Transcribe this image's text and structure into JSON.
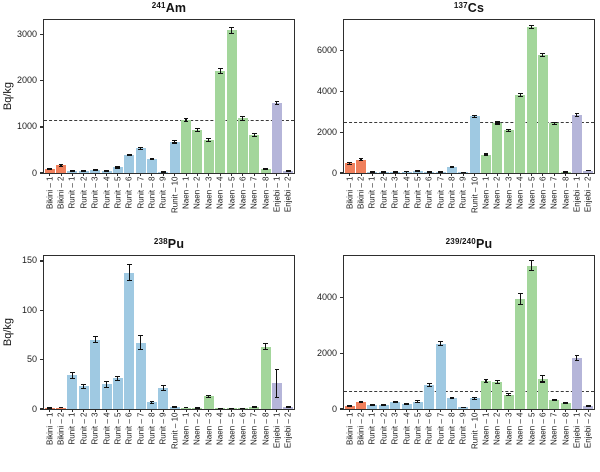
{
  "figure": {
    "axis_color": "#2e2e2e",
    "text_color": "#1c1c1c",
    "error_bar_color": "#101010",
    "dashed_line_color": "#3a3a3a",
    "background": "#ffffff",
    "site_colors": {
      "Bikini": "#f0805c",
      "Runit": "#9fc9e2",
      "Naen": "#a3d69b",
      "Enjebi": "#b5b5d9"
    }
  },
  "chart_data": [
    {
      "type": "bar",
      "title": {
        "superscript": "241",
        "element": "Am"
      },
      "ylabel": "Bq/kg",
      "categories": [
        "Bikini – 1",
        "Bikini – 2",
        "Runit – 1",
        "Runit – 2",
        "Runit – 3",
        "Runit – 4",
        "Runit – 5",
        "Runit – 6",
        "Runit – 7",
        "Runit – 8",
        "Runit – 9",
        "Runit – 10",
        "Naen – 1",
        "Naen – 2",
        "Naen – 3",
        "Naen – 4",
        "Naen – 5",
        "Naen – 6",
        "Naen – 7",
        "Naen – 8",
        "Enjebi – 1",
        "Enjebi – 2"
      ],
      "values": [
        90,
        170,
        50,
        45,
        60,
        45,
        120,
        390,
        540,
        300,
        25,
        680,
        1150,
        930,
        715,
        2220,
        3100,
        1190,
        820,
        80,
        1520,
        50
      ],
      "errors": [
        15,
        20,
        8,
        8,
        8,
        8,
        12,
        18,
        22,
        15,
        6,
        30,
        40,
        30,
        25,
        55,
        65,
        45,
        28,
        10,
        40,
        8
      ],
      "ylim": [
        0,
        3320
      ],
      "yticks": [
        0,
        1000,
        2000,
        3000
      ],
      "dashed_reference": 1130,
      "grid": false
    },
    {
      "type": "bar",
      "title": {
        "superscript": "137",
        "element": "Cs"
      },
      "ylabel": "",
      "categories": [
        "Bikini – 1",
        "Bikini – 2",
        "Runit – 1",
        "Runit – 2",
        "Runit – 3",
        "Runit – 4",
        "Runit – 5",
        "Runit – 6",
        "Runit – 7",
        "Runit – 8",
        "Runit – 9",
        "Runit – 10",
        "Naen – 1",
        "Naen – 2",
        "Naen – 3",
        "Naen – 4",
        "Naen – 5",
        "Naen – 6",
        "Naen – 7",
        "Naen – 8",
        "Enjebi – 1",
        "Enjebi – 2"
      ],
      "values": [
        470,
        650,
        40,
        40,
        50,
        70,
        90,
        50,
        50,
        300,
        30,
        2780,
        890,
        2450,
        2100,
        3830,
        7160,
        5780,
        2430,
        50,
        2840,
        120
      ],
      "errors": [
        35,
        40,
        8,
        8,
        8,
        10,
        12,
        8,
        8,
        25,
        6,
        60,
        40,
        50,
        45,
        70,
        80,
        70,
        50,
        8,
        55,
        15
      ],
      "ylim": [
        0,
        7500
      ],
      "yticks": [
        0,
        2000,
        4000,
        6000
      ],
      "dashed_reference": 2450,
      "grid": false
    },
    {
      "type": "bar",
      "title": {
        "superscript": "238",
        "element": "Pu"
      },
      "ylabel": "Bq/kg",
      "categories": [
        "Bikini – 1",
        "Bikini – 2",
        "Runit – 1",
        "Runit – 2",
        "Runit – 3",
        "Runit – 4",
        "Runit – 5",
        "Runit – 6",
        "Runit – 7",
        "Runit – 8",
        "Runit – 9",
        "Runit – 10",
        "Naen – 1",
        "Naen – 2",
        "Naen – 3",
        "Naen – 4",
        "Naen – 5",
        "Naen – 6",
        "Naen – 7",
        "Naen – 8",
        "Enjebi – 1",
        "Enjebi – 2"
      ],
      "values": [
        1,
        1.5,
        34,
        23,
        70,
        25,
        31,
        138,
        67,
        7,
        21,
        2,
        1.5,
        1,
        13,
        0.5,
        0.5,
        0.5,
        2,
        63,
        26,
        2
      ],
      "errors": [
        0.3,
        0.4,
        3,
        2,
        3,
        3,
        2,
        8,
        7,
        1,
        2.5,
        0.5,
        0.4,
        0.3,
        1,
        0.2,
        0.2,
        0.2,
        0.5,
        3,
        14,
        0.6
      ],
      "ylim": [
        0,
        155
      ],
      "yticks": [
        0,
        50,
        100,
        150
      ],
      "dashed_reference": null,
      "grid": false
    },
    {
      "type": "bar",
      "title": {
        "superscript": "239/240",
        "element": "Pu"
      },
      "ylabel": "",
      "categories": [
        "Bikini – 1",
        "Bikini – 2",
        "Runit – 1",
        "Runit – 2",
        "Runit – 3",
        "Runit – 4",
        "Runit – 5",
        "Runit – 6",
        "Runit – 7",
        "Runit – 8",
        "Runit – 9",
        "Runit – 10",
        "Naen – 1",
        "Naen – 2",
        "Naen – 3",
        "Naen – 4",
        "Naen – 5",
        "Naen – 6",
        "Naen – 7",
        "Naen – 8",
        "Enjebi – 1",
        "Enjebi – 2"
      ],
      "values": [
        110,
        260,
        150,
        160,
        250,
        175,
        270,
        870,
        2350,
        395,
        60,
        390,
        1015,
        960,
        510,
        3960,
        5150,
        1080,
        320,
        215,
        1830,
        95
      ],
      "errors": [
        15,
        25,
        15,
        15,
        20,
        18,
        22,
        45,
        70,
        30,
        10,
        35,
        50,
        55,
        35,
        200,
        180,
        110,
        30,
        25,
        100,
        15
      ],
      "ylim": [
        0,
        5500
      ],
      "yticks": [
        0,
        2000,
        4000
      ],
      "dashed_reference": 620,
      "grid": false
    }
  ]
}
